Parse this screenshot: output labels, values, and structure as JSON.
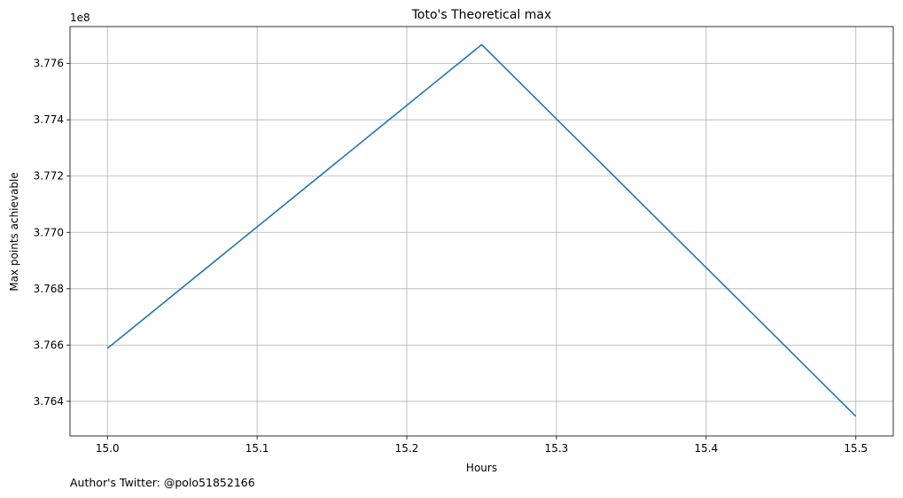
{
  "chart_data": {
    "type": "line",
    "title": "Toto's Theoretical max",
    "xlabel": "Hours",
    "ylabel": "Max points achievable",
    "y_offset_label": "1e8",
    "xlim": [
      14.975,
      15.525
    ],
    "ylim": [
      3.76277,
      3.77731
    ],
    "x_ticks": [
      15.0,
      15.1,
      15.2,
      15.3,
      15.4,
      15.5
    ],
    "x_tick_labels": [
      "15.0",
      "15.1",
      "15.2",
      "15.3",
      "15.4",
      "15.5"
    ],
    "y_ticks": [
      3.764,
      3.766,
      3.768,
      3.77,
      3.772,
      3.774,
      3.776
    ],
    "y_tick_labels": [
      "3.764",
      "3.766",
      "3.768",
      "3.770",
      "3.772",
      "3.774",
      "3.776"
    ],
    "grid": true,
    "series": [
      {
        "color": "#1f77b4",
        "x": [
          15.0,
          15.25,
          15.5
        ],
        "y": [
          3.76588,
          3.77667,
          3.76347
        ]
      }
    ]
  },
  "footer": {
    "credit": "Author's Twitter: @polo51852166"
  }
}
